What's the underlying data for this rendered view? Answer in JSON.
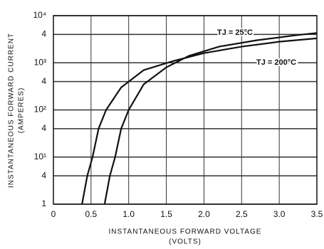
{
  "chart_data": {
    "type": "line",
    "x_label": "INSTANTANEOUS FORWARD VOLTAGE",
    "x_label_units": "(VOLTS)",
    "y_label": "INSTANTANEOUS FORWARD CURRENT",
    "y_label_units": "(AMPERES)",
    "xlim": [
      0,
      3.5
    ],
    "xticks": [
      0,
      0.5,
      {
        "value": 1,
        "label": "1.0"
      },
      1.5,
      {
        "value": 2,
        "label": "2.0"
      },
      2.5,
      {
        "value": 3,
        "label": "3.0"
      },
      3.5
    ],
    "ylim": [
      1,
      10000
    ],
    "yscale": "log",
    "yticks": [
      1,
      {
        "value": 4,
        "label": "4"
      },
      {
        "value": 10,
        "label": "10¹"
      },
      {
        "value": 40,
        "label": "4"
      },
      {
        "value": 100,
        "label": "10²"
      },
      {
        "value": 400,
        "label": "4"
      },
      {
        "value": 1000,
        "label": "10³"
      },
      {
        "value": 4000,
        "label": "4"
      },
      {
        "value": 10000,
        "label": "10⁴"
      }
    ],
    "grid": true,
    "series": [
      {
        "name": "TJ = 200°C",
        "color": "#111111",
        "x": [
          0.38,
          0.45,
          0.52,
          0.6,
          0.7,
          0.9,
          1.2,
          1.6,
          2,
          2.5,
          3,
          3.5
        ],
        "values": [
          1,
          4,
          10,
          40,
          100,
          300,
          700,
          1100,
          1600,
          2200,
          2800,
          3300
        ]
      },
      {
        "name": "TJ = 25°C",
        "color": "#111111",
        "x": [
          0.68,
          0.75,
          0.82,
          0.9,
          1.0,
          1.2,
          1.5,
          1.8,
          2.2,
          2.7,
          3.2,
          3.5
        ],
        "values": [
          1,
          4,
          10,
          40,
          100,
          350,
          800,
          1400,
          2200,
          3000,
          3800,
          4300
        ]
      }
    ]
  }
}
